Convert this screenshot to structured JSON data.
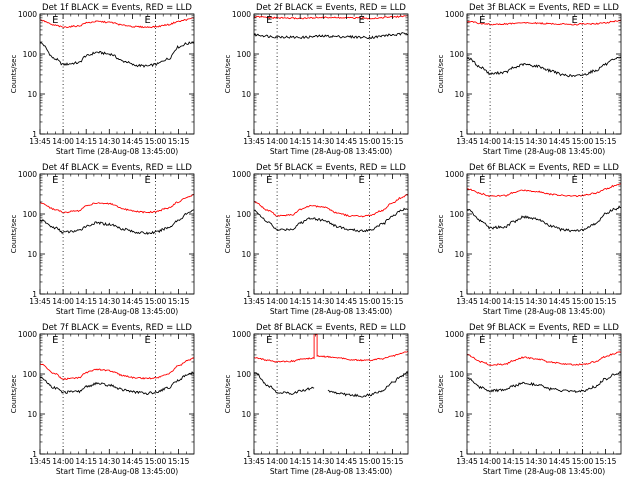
{
  "figure": {
    "colors": {
      "events": "#000000",
      "lld": "#ff0000",
      "axes": "#000000",
      "background": "#ffffff"
    }
  },
  "chart_data": [
    {
      "type": "line",
      "title": "Det 1f BLACK = Events, RED = LLD",
      "xlabel": "Start Time (28-Aug-08 13:45:00)",
      "ylabel": "Counts/sec",
      "xticks": [
        "13:45",
        "14:00",
        "14:15",
        "14:30",
        "14:45",
        "15:00",
        "15:15"
      ],
      "yticks": [
        "1",
        "10",
        "100",
        "1000"
      ],
      "xlim": [
        "13:45",
        "15:25"
      ],
      "ylim": [
        1,
        1000
      ],
      "yscale": "log",
      "markers": [
        {
          "x": "14:00",
          "label": "E"
        },
        {
          "x": "15:00",
          "label": "E"
        }
      ],
      "grid": false,
      "legend": "none",
      "series": [
        {
          "name": "Events",
          "color": "#000000",
          "x": [
            "13:45",
            "13:55",
            "14:00",
            "14:10",
            "14:15",
            "14:22",
            "14:30",
            "14:40",
            "14:47",
            "14:55",
            "15:00",
            "15:08",
            "15:15",
            "15:20",
            "15:25"
          ],
          "values": [
            190,
            75,
            55,
            60,
            90,
            110,
            100,
            65,
            52,
            50,
            55,
            75,
            150,
            180,
            200
          ]
        },
        {
          "name": "LLD",
          "color": "#ff0000",
          "x": [
            "13:45",
            "13:55",
            "14:00",
            "14:10",
            "14:15",
            "14:22",
            "14:30",
            "14:40",
            "14:47",
            "14:55",
            "15:00",
            "15:08",
            "15:15",
            "15:20",
            "15:25"
          ],
          "values": [
            700,
            520,
            470,
            500,
            600,
            650,
            620,
            520,
            480,
            470,
            480,
            540,
            650,
            720,
            800
          ]
        }
      ]
    },
    {
      "type": "line",
      "title": "Det 2f BLACK = Events, RED = LLD",
      "xlabel": "Start Time (28-Aug-08 13:45:00)",
      "ylabel": "Counts/sec",
      "xticks": [
        "13:45",
        "14:00",
        "14:15",
        "14:30",
        "14:45",
        "15:00",
        "15:15"
      ],
      "yticks": [
        "1",
        "10",
        "100",
        "1000"
      ],
      "xlim": [
        "13:45",
        "15:25"
      ],
      "ylim": [
        1,
        1000
      ],
      "yscale": "log",
      "markers": [
        {
          "x": "14:00",
          "label": "E"
        },
        {
          "x": "15:00",
          "label": "E"
        }
      ],
      "grid": false,
      "legend": "none",
      "series": [
        {
          "name": "Events",
          "color": "#000000",
          "x": [
            "13:45",
            "14:00",
            "14:15",
            "14:30",
            "14:45",
            "15:00",
            "15:15",
            "15:25"
          ],
          "values": [
            300,
            270,
            260,
            280,
            270,
            260,
            300,
            330
          ]
        },
        {
          "name": "LLD",
          "color": "#ff0000",
          "x": [
            "13:45",
            "14:00",
            "14:15",
            "14:30",
            "14:45",
            "15:00",
            "15:15",
            "15:25"
          ],
          "values": [
            850,
            800,
            780,
            820,
            800,
            780,
            840,
            900
          ]
        }
      ]
    },
    {
      "type": "line",
      "title": "Det 3f BLACK = Events, RED = LLD",
      "xlabel": "Start Time (28-Aug-08 13:45:00)",
      "ylabel": "Counts/sec",
      "xticks": [
        "13:45",
        "14:00",
        "14:15",
        "14:30",
        "14:45",
        "15:00",
        "15:15"
      ],
      "yticks": [
        "1",
        "10",
        "100",
        "1000"
      ],
      "xlim": [
        "13:45",
        "15:25"
      ],
      "ylim": [
        1,
        1000
      ],
      "yscale": "log",
      "markers": [
        {
          "x": "14:00",
          "label": "E"
        },
        {
          "x": "15:00",
          "label": "E"
        }
      ],
      "grid": false,
      "legend": "none",
      "series": [
        {
          "name": "Events",
          "color": "#000000",
          "x": [
            "13:45",
            "13:55",
            "14:00",
            "14:10",
            "14:15",
            "14:22",
            "14:30",
            "14:40",
            "14:47",
            "14:55",
            "15:00",
            "15:08",
            "15:15",
            "15:20",
            "15:25"
          ],
          "values": [
            80,
            45,
            32,
            35,
            45,
            55,
            50,
            38,
            30,
            28,
            30,
            38,
            55,
            70,
            85
          ]
        },
        {
          "name": "LLD",
          "color": "#ff0000",
          "x": [
            "13:45",
            "13:55",
            "14:00",
            "14:10",
            "14:15",
            "14:22",
            "14:30",
            "14:40",
            "14:47",
            "14:55",
            "15:00",
            "15:08",
            "15:15",
            "15:20",
            "15:25"
          ],
          "values": [
            650,
            580,
            550,
            560,
            580,
            600,
            590,
            570,
            560,
            550,
            560,
            570,
            600,
            650,
            700
          ]
        }
      ]
    },
    {
      "type": "line",
      "title": "Det 4f BLACK = Events, RED = LLD",
      "xlabel": "Start Time (28-Aug-08 13:45:00)",
      "ylabel": "Counts/sec",
      "xticks": [
        "13:45",
        "14:00",
        "14:15",
        "14:30",
        "14:45",
        "15:00",
        "15:15"
      ],
      "yticks": [
        "1",
        "10",
        "100",
        "1000"
      ],
      "xlim": [
        "13:45",
        "15:25"
      ],
      "ylim": [
        1,
        1000
      ],
      "yscale": "log",
      "markers": [
        {
          "x": "14:00",
          "label": "E"
        },
        {
          "x": "15:00",
          "label": "E"
        }
      ],
      "grid": false,
      "legend": "none",
      "series": [
        {
          "name": "Events",
          "color": "#000000",
          "x": [
            "13:45",
            "13:55",
            "14:00",
            "14:10",
            "14:15",
            "14:22",
            "14:30",
            "14:40",
            "14:47",
            "14:55",
            "15:00",
            "15:08",
            "15:15",
            "15:20",
            "15:25"
          ],
          "values": [
            70,
            45,
            35,
            38,
            50,
            60,
            55,
            42,
            35,
            33,
            35,
            45,
            70,
            100,
            130
          ]
        },
        {
          "name": "LLD",
          "color": "#ff0000",
          "x": [
            "13:45",
            "13:55",
            "14:00",
            "14:10",
            "14:15",
            "14:22",
            "14:30",
            "14:40",
            "14:47",
            "14:55",
            "15:00",
            "15:08",
            "15:15",
            "15:20",
            "15:25"
          ],
          "values": [
            190,
            130,
            110,
            120,
            160,
            190,
            180,
            130,
            115,
            110,
            115,
            140,
            200,
            260,
            300
          ]
        }
      ]
    },
    {
      "type": "line",
      "title": "Det 5f BLACK = Events, RED = LLD",
      "xlabel": "Start Time (28-Aug-08 13:45:00)",
      "ylabel": "Counts/sec",
      "xticks": [
        "13:45",
        "14:00",
        "14:15",
        "14:30",
        "14:45",
        "15:00",
        "15:15"
      ],
      "yticks": [
        "1",
        "10",
        "100",
        "1000"
      ],
      "xlim": [
        "13:45",
        "15:25"
      ],
      "ylim": [
        1,
        1000
      ],
      "yscale": "log",
      "markers": [
        {
          "x": "14:00",
          "label": "E"
        },
        {
          "x": "15:00",
          "label": "E"
        }
      ],
      "grid": false,
      "legend": "none",
      "series": [
        {
          "name": "Events",
          "color": "#000000",
          "x": [
            "13:45",
            "13:55",
            "14:00",
            "14:10",
            "14:15",
            "14:22",
            "14:30",
            "14:40",
            "14:47",
            "14:55",
            "15:00",
            "15:08",
            "15:15",
            "15:20",
            "15:25"
          ],
          "values": [
            120,
            60,
            40,
            42,
            60,
            80,
            70,
            48,
            40,
            38,
            40,
            55,
            90,
            120,
            140
          ]
        },
        {
          "name": "LLD",
          "color": "#ff0000",
          "x": [
            "13:45",
            "13:55",
            "14:00",
            "14:10",
            "14:15",
            "14:22",
            "14:30",
            "14:40",
            "14:47",
            "14:55",
            "15:00",
            "15:08",
            "15:15",
            "15:20",
            "15:25"
          ],
          "values": [
            200,
            120,
            90,
            95,
            130,
            160,
            150,
            105,
            90,
            88,
            92,
            120,
            190,
            250,
            300
          ]
        }
      ]
    },
    {
      "type": "line",
      "title": "Det 6f BLACK = Events, RED = LLD",
      "xlabel": "Start Time (28-Aug-08 13:45:00)",
      "ylabel": "Counts/sec",
      "xticks": [
        "13:45",
        "14:00",
        "14:15",
        "14:30",
        "14:45",
        "15:00",
        "15:15"
      ],
      "yticks": [
        "1",
        "10",
        "100",
        "1000"
      ],
      "xlim": [
        "13:45",
        "15:25"
      ],
      "ylim": [
        1,
        1000
      ],
      "yscale": "log",
      "markers": [
        {
          "x": "14:00",
          "label": "E"
        },
        {
          "x": "15:00",
          "label": "E"
        }
      ],
      "grid": false,
      "legend": "none",
      "series": [
        {
          "name": "Events",
          "color": "#000000",
          "x": [
            "13:45",
            "13:55",
            "14:00",
            "14:10",
            "14:15",
            "14:22",
            "14:30",
            "14:40",
            "14:47",
            "14:55",
            "15:00",
            "15:08",
            "15:15",
            "15:20",
            "15:25"
          ],
          "values": [
            130,
            65,
            45,
            48,
            65,
            85,
            75,
            50,
            40,
            38,
            40,
            55,
            100,
            130,
            150
          ]
        },
        {
          "name": "LLD",
          "color": "#ff0000",
          "x": [
            "13:45",
            "13:55",
            "14:00",
            "14:10",
            "14:15",
            "14:22",
            "14:30",
            "14:40",
            "14:47",
            "14:55",
            "15:00",
            "15:08",
            "15:15",
            "15:20",
            "15:25"
          ],
          "values": [
            420,
            320,
            280,
            290,
            340,
            390,
            370,
            310,
            290,
            280,
            290,
            330,
            420,
            500,
            550
          ]
        }
      ]
    },
    {
      "type": "line",
      "title": "Det 7f BLACK = Events, RED = LLD",
      "xlabel": "Start Time (28-Aug-08 13:45:00)",
      "ylabel": "Counts/sec",
      "xticks": [
        "13:45",
        "14:00",
        "14:15",
        "14:30",
        "14:45",
        "15:00",
        "15:15"
      ],
      "yticks": [
        "1",
        "10",
        "100",
        "1000"
      ],
      "xlim": [
        "13:45",
        "15:25"
      ],
      "ylim": [
        1,
        1000
      ],
      "yscale": "log",
      "markers": [
        {
          "x": "14:00",
          "label": "E"
        },
        {
          "x": "15:00",
          "label": "E"
        }
      ],
      "grid": false,
      "legend": "none",
      "series": [
        {
          "name": "Events",
          "color": "#000000",
          "x": [
            "13:45",
            "13:55",
            "14:00",
            "14:10",
            "14:15",
            "14:22",
            "14:30",
            "14:40",
            "14:47",
            "14:55",
            "15:00",
            "15:08",
            "15:15",
            "15:20",
            "15:25"
          ],
          "values": [
            80,
            45,
            35,
            36,
            48,
            58,
            52,
            40,
            35,
            33,
            35,
            45,
            70,
            95,
            110
          ]
        },
        {
          "name": "LLD",
          "color": "#ff0000",
          "x": [
            "13:45",
            "13:55",
            "14:00",
            "14:10",
            "14:15",
            "14:22",
            "14:30",
            "14:40",
            "14:47",
            "14:55",
            "15:00",
            "15:08",
            "15:15",
            "15:20",
            "15:25"
          ],
          "values": [
            180,
            100,
            75,
            80,
            110,
            130,
            120,
            90,
            80,
            78,
            80,
            100,
            160,
            210,
            250
          ]
        }
      ]
    },
    {
      "type": "line",
      "title": "Det 8f BLACK = Events, RED = LLD",
      "xlabel": "Start Time (28-Aug-08 13:45:00)",
      "ylabel": "Counts/sec",
      "xticks": [
        "13:45",
        "14:00",
        "14:15",
        "14:30",
        "14:45",
        "15:00",
        "15:15"
      ],
      "yticks": [
        "1",
        "10",
        "100",
        "1000"
      ],
      "xlim": [
        "13:45",
        "15:25"
      ],
      "ylim": [
        1,
        1000
      ],
      "yscale": "log",
      "markers": [
        {
          "x": "14:00",
          "label": "E"
        },
        {
          "x": "15:00",
          "label": "E"
        }
      ],
      "grid": false,
      "legend": "none",
      "series": [
        {
          "name": "Events",
          "color": "#000000",
          "x": [
            "13:45",
            "13:55",
            "14:00",
            "14:10",
            "14:15",
            "14:24",
            "14:24",
            "14:33",
            "14:33",
            "14:40",
            "14:47",
            "14:55",
            "15:00",
            "15:08",
            "15:15",
            "15:20",
            "15:25"
          ],
          "values": [
            110,
            50,
            35,
            33,
            38,
            45,
            null,
            null,
            38,
            33,
            30,
            28,
            30,
            38,
            60,
            85,
            110
          ]
        },
        {
          "name": "LLD",
          "color": "#ff0000",
          "x": [
            "13:45",
            "13:55",
            "14:00",
            "14:10",
            "14:15",
            "14:24",
            "14:24",
            "14:26",
            "14:26",
            "14:33",
            "14:40",
            "14:47",
            "14:55",
            "15:00",
            "15:08",
            "15:15",
            "15:20",
            "15:25"
          ],
          "values": [
            260,
            220,
            200,
            210,
            230,
            250,
            1000,
            1000,
            280,
            270,
            250,
            230,
            220,
            220,
            240,
            280,
            320,
            360
          ]
        }
      ]
    },
    {
      "type": "line",
      "title": "Det 9f BLACK = Events, RED = LLD",
      "xlabel": "Start Time (28-Aug-08 13:45:00)",
      "ylabel": "Counts/sec",
      "xticks": [
        "13:45",
        "14:00",
        "14:15",
        "14:30",
        "14:45",
        "15:00",
        "15:15"
      ],
      "yticks": [
        "1",
        "10",
        "100",
        "1000"
      ],
      "xlim": [
        "13:45",
        "15:25"
      ],
      "ylim": [
        1,
        1000
      ],
      "yscale": "log",
      "markers": [
        {
          "x": "14:00",
          "label": "E"
        },
        {
          "x": "15:00",
          "label": "E"
        }
      ],
      "grid": false,
      "legend": "none",
      "series": [
        {
          "name": "Events",
          "color": "#000000",
          "x": [
            "13:45",
            "13:55",
            "14:00",
            "14:10",
            "14:15",
            "14:22",
            "14:30",
            "14:40",
            "14:47",
            "14:55",
            "15:00",
            "15:08",
            "15:15",
            "15:20",
            "15:25"
          ],
          "values": [
            80,
            45,
            38,
            40,
            50,
            60,
            55,
            42,
            38,
            36,
            38,
            48,
            75,
            95,
            110
          ]
        },
        {
          "name": "LLD",
          "color": "#ff0000",
          "x": [
            "13:45",
            "13:55",
            "14:00",
            "14:10",
            "14:15",
            "14:22",
            "14:30",
            "14:40",
            "14:47",
            "14:55",
            "15:00",
            "15:08",
            "15:15",
            "15:20",
            "15:25"
          ],
          "values": [
            300,
            200,
            170,
            175,
            220,
            260,
            240,
            195,
            180,
            170,
            175,
            200,
            270,
            320,
            360
          ]
        }
      ]
    }
  ]
}
